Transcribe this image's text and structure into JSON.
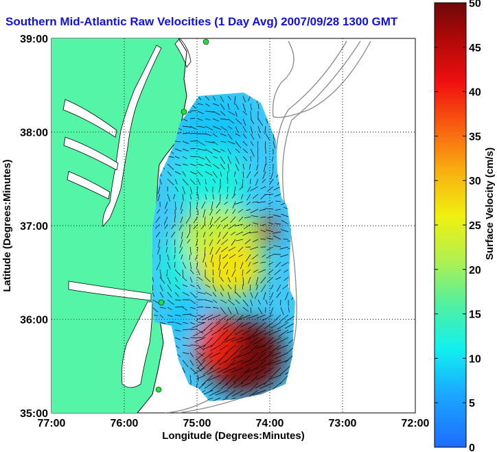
{
  "chart_data": {
    "type": "heatmap",
    "title": "Southern Mid-Atlantic Raw Velocities (1 Day Avg) 2007/09/28 1300 GMT",
    "xlabel": "Longitude (Degrees:Minutes)",
    "ylabel": "Latitude (Degrees:Minutes)",
    "xlim": [
      -77,
      -72
    ],
    "ylim": [
      35,
      39
    ],
    "x_ticks": [
      {
        "value": -77,
        "label": "77:00"
      },
      {
        "value": -76,
        "label": "76:00"
      },
      {
        "value": -75,
        "label": "75:00"
      },
      {
        "value": -74,
        "label": "74:00"
      },
      {
        "value": -73,
        "label": "73:00"
      },
      {
        "value": -72,
        "label": "72:00"
      }
    ],
    "y_ticks": [
      {
        "value": 35,
        "label": "35:00"
      },
      {
        "value": 36,
        "label": "36:00"
      },
      {
        "value": 37,
        "label": "37:00"
      },
      {
        "value": 38,
        "label": "38:00"
      },
      {
        "value": 39,
        "label": "39:00"
      }
    ],
    "grid": true,
    "colorbar": {
      "label": "Surface Velocity (cm/s)",
      "min": 0,
      "max": 50,
      "ticks": [
        {
          "value": 0,
          "label": "0"
        },
        {
          "value": 5,
          "label": "5"
        },
        {
          "value": 10,
          "label": "10"
        },
        {
          "value": 15,
          "label": "15"
        },
        {
          "value": 20,
          "label": "20"
        },
        {
          "value": 25,
          "label": "25"
        },
        {
          "value": 30,
          "label": "30"
        },
        {
          "value": 35,
          "label": "35"
        },
        {
          "value": 40,
          "label": "40"
        },
        {
          "value": 45,
          "label": "45"
        },
        {
          "value": 50,
          "label": "50"
        }
      ]
    },
    "velocity_regions": [
      {
        "lon": -74.75,
        "lat": 38.05,
        "rx": 0.5,
        "ry": 0.35,
        "speed": 8
      },
      {
        "lon": -74.8,
        "lat": 37.45,
        "rx": 0.5,
        "ry": 0.4,
        "speed": 12
      },
      {
        "lon": -74.7,
        "lat": 36.85,
        "rx": 0.55,
        "ry": 0.35,
        "speed": 22
      },
      {
        "lon": -74.55,
        "lat": 36.55,
        "rx": 0.45,
        "ry": 0.3,
        "speed": 27
      },
      {
        "lon": -74.05,
        "lat": 36.95,
        "rx": 0.12,
        "ry": 0.15,
        "speed": 45
      },
      {
        "lon": -74.35,
        "lat": 35.6,
        "rx": 0.55,
        "ry": 0.4,
        "speed": 50
      },
      {
        "lon": -74.75,
        "lat": 35.75,
        "rx": 0.3,
        "ry": 0.3,
        "speed": 40
      },
      {
        "lon": -75.15,
        "lat": 36.0,
        "rx": 0.25,
        "ry": 0.25,
        "speed": 8
      },
      {
        "lon": -75.3,
        "lat": 36.55,
        "rx": 0.2,
        "ry": 0.35,
        "speed": 12
      }
    ],
    "land_color": "#55f5a8",
    "coastline_color": "#000000",
    "arrow_color": "#000000"
  }
}
